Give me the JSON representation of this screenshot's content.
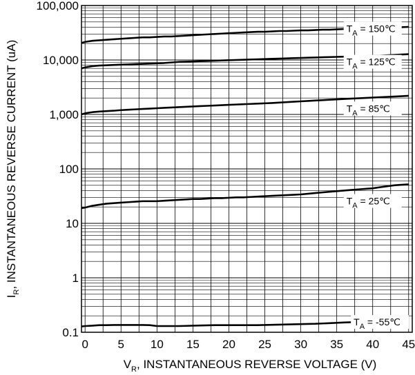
{
  "chart_data": {
    "type": "line",
    "xlabel": "V",
    "xlabel_sub": "R",
    "xlabel_rest": ", INSTANTANEOUS REVERSE VOLTAGE (V)",
    "ylabel": "I",
    "ylabel_sub": "R",
    "ylabel_rest": ", INSTANTANEOUS REVERSE CURRENT (uA)",
    "xlim": [
      -0.5,
      45.5
    ],
    "ylim": [
      0.1,
      100000
    ],
    "y_scale": "log",
    "grid": true,
    "x_ticks": [
      {
        "value": 0,
        "label": "0"
      },
      {
        "value": 5,
        "label": "5"
      },
      {
        "value": 10,
        "label": "10"
      },
      {
        "value": 15,
        "label": "15"
      },
      {
        "value": 20,
        "label": "20"
      },
      {
        "value": 25,
        "label": "25"
      },
      {
        "value": 30,
        "label": "30"
      },
      {
        "value": 35,
        "label": "35"
      },
      {
        "value": 40,
        "label": "40"
      },
      {
        "value": 45,
        "label": "45"
      }
    ],
    "y_ticks": [
      {
        "value": 0.1,
        "label": "0.1"
      },
      {
        "value": 1,
        "label": "1"
      },
      {
        "value": 10,
        "label": "10"
      },
      {
        "value": 100,
        "label": "100"
      },
      {
        "value": 1000,
        "label": "1,000"
      },
      {
        "value": 10000,
        "label": "10,000"
      },
      {
        "value": 100000,
        "label": "100,000"
      }
    ],
    "series": [
      {
        "label_main": "T",
        "label_sub": "A",
        "label_rest": " = 150℃",
        "label_at": [
          40,
          36500
        ],
        "x": [
          -0.5,
          0,
          1,
          2,
          3,
          4,
          5,
          6,
          7,
          8,
          9,
          10,
          11,
          12,
          13,
          14,
          15,
          16,
          17,
          18,
          19,
          20,
          21,
          22,
          23,
          24,
          25,
          26,
          27,
          28,
          29,
          30,
          31,
          32,
          33,
          34,
          35,
          36,
          37,
          38,
          39,
          40,
          41,
          42,
          43,
          44,
          45
        ],
        "y": [
          20500,
          21500,
          22500,
          23000,
          23500,
          24000,
          24500,
          25000,
          25500,
          26000,
          26000,
          26500,
          27000,
          27000,
          27500,
          28000,
          28500,
          29000,
          29500,
          30000,
          30500,
          31000,
          31500,
          32000,
          32500,
          33000,
          33000,
          33500,
          34000,
          34000,
          34500,
          35000,
          35000,
          35500,
          36000,
          36000,
          36500,
          37000,
          37000,
          37500,
          38000,
          38000,
          38500,
          39000,
          39500,
          40000,
          40500
        ]
      },
      {
        "label_main": "T",
        "label_sub": "A",
        "label_rest": " = 125℃",
        "label_at": [
          40,
          9000
        ],
        "x": [
          -0.5,
          0,
          1,
          2,
          3,
          4,
          5,
          6,
          7,
          8,
          9,
          10,
          11,
          12,
          13,
          14,
          15,
          16,
          17,
          18,
          19,
          20,
          21,
          22,
          23,
          24,
          25,
          26,
          27,
          28,
          29,
          30,
          31,
          32,
          33,
          34,
          35,
          36,
          37,
          38,
          39,
          40,
          41,
          42,
          43,
          44,
          45
        ],
        "y": [
          7000,
          7300,
          7700,
          7900,
          8000,
          8100,
          8200,
          8300,
          8400,
          8500,
          8600,
          8700,
          8800,
          9000,
          9200,
          9300,
          9400,
          9500,
          9600,
          9700,
          9800,
          9900,
          10000,
          10100,
          10200,
          10300,
          10400,
          10500,
          10600,
          10700,
          10800,
          10900,
          11000,
          11100,
          11200,
          11300,
          11400,
          11500,
          11600,
          11700,
          11800,
          11900,
          12000,
          12200,
          12400,
          12600,
          12800
        ]
      },
      {
        "label_main": "T",
        "label_sub": "A",
        "label_rest": " = 85℃",
        "label_at": [
          40,
          1250
        ],
        "x": [
          -0.5,
          0,
          1,
          2,
          3,
          4,
          5,
          6,
          7,
          8,
          9,
          10,
          11,
          12,
          13,
          14,
          15,
          16,
          17,
          18,
          19,
          20,
          21,
          22,
          23,
          24,
          25,
          26,
          27,
          28,
          29,
          30,
          31,
          32,
          33,
          34,
          35,
          36,
          37,
          38,
          39,
          40,
          41,
          42,
          43,
          44,
          45
        ],
        "y": [
          1000,
          1050,
          1100,
          1130,
          1150,
          1170,
          1200,
          1220,
          1240,
          1260,
          1280,
          1300,
          1320,
          1340,
          1360,
          1380,
          1400,
          1420,
          1440,
          1460,
          1480,
          1500,
          1520,
          1540,
          1560,
          1580,
          1600,
          1620,
          1650,
          1680,
          1710,
          1740,
          1770,
          1800,
          1830,
          1860,
          1890,
          1920,
          1950,
          1980,
          2010,
          2040,
          2070,
          2100,
          2130,
          2160,
          2200
        ]
      },
      {
        "label_main": "T",
        "label_sub": "A",
        "label_rest": " = 25℃",
        "label_at": [
          40,
          25500
        ],
        "label_at_real": [
          40,
          25
        ],
        "x": [
          -0.5,
          0,
          1,
          2,
          3,
          4,
          5,
          6,
          7,
          8,
          9,
          10,
          11,
          12,
          13,
          14,
          15,
          16,
          17,
          18,
          19,
          20,
          21,
          22,
          23,
          24,
          25,
          26,
          27,
          28,
          29,
          30,
          31,
          32,
          33,
          34,
          35,
          36,
          37,
          38,
          39,
          40,
          41,
          42,
          43,
          44,
          45
        ],
        "y": [
          19,
          19.5,
          21,
          22,
          23,
          23.5,
          24,
          24.5,
          25,
          25.5,
          25.5,
          25.5,
          26,
          26.5,
          27,
          27.5,
          28,
          28,
          28.5,
          29,
          29,
          29.5,
          30,
          30,
          30.5,
          31,
          31.5,
          32,
          32.5,
          33,
          33.5,
          34,
          35,
          36,
          37,
          38,
          39,
          40,
          41,
          42,
          43,
          44,
          46,
          48,
          50,
          51,
          52
        ]
      },
      {
        "label_main": "T",
        "label_sub": "A",
        "label_rest": " = -55℃",
        "label_at_real": [
          41,
          0.15
        ],
        "x": [
          -0.5,
          0,
          1,
          2,
          3,
          4,
          5,
          6,
          7,
          8,
          9,
          10,
          11,
          12,
          13,
          14,
          15,
          16,
          17,
          18,
          19,
          20,
          21,
          22,
          23,
          24,
          25,
          26,
          27,
          28,
          29,
          30,
          31,
          32,
          33,
          34,
          35,
          36,
          37,
          38,
          39,
          40,
          41,
          42,
          43,
          44,
          45
        ],
        "y": [
          0.128,
          0.13,
          0.132,
          0.135,
          0.135,
          0.136,
          0.136,
          0.136,
          0.136,
          0.136,
          0.135,
          0.13,
          0.13,
          0.13,
          0.13,
          0.131,
          0.132,
          0.133,
          0.134,
          0.135,
          0.135,
          0.135,
          0.135,
          0.135,
          0.135,
          0.135,
          0.136,
          0.137,
          0.138,
          0.139,
          0.14,
          0.141,
          0.142,
          0.143,
          0.145,
          0.147,
          0.149,
          0.151,
          0.153,
          0.155,
          0.157,
          0.16,
          0.163,
          0.166,
          0.17,
          0.173,
          0.177
        ]
      }
    ]
  }
}
